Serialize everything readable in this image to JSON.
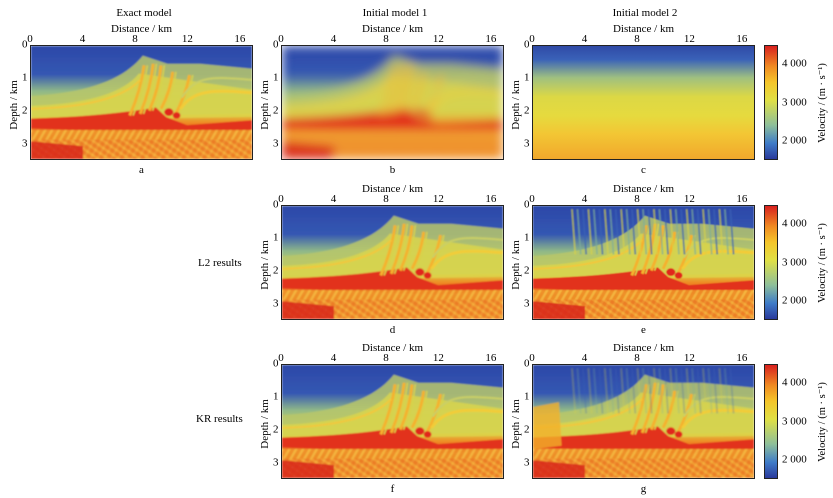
{
  "chart_data": {
    "type": "heatmap",
    "description_units": {
      "x": "km",
      "y": "km",
      "color": "m/s"
    },
    "xlim": [
      0,
      17
    ],
    "ylim": [
      0,
      3.5
    ],
    "x_ticks": [
      "0",
      "4",
      "8",
      "12",
      "16"
    ],
    "y_ticks": [
      "1",
      "2",
      "3"
    ],
    "xlabel": "Distance / km",
    "ylabel": "Depth / km",
    "colorbar": {
      "label": "Velocity / (m · s⁻¹)",
      "ticks": [
        "4 000",
        "3 000",
        "2 000"
      ],
      "range": [
        1500,
        4500
      ]
    },
    "column_titles": [
      "Exact model",
      "Initial model 1",
      "Initial model 2"
    ],
    "row_labels": [
      "L2 results",
      "KR results"
    ],
    "panels": [
      {
        "id": "a",
        "caption": "a",
        "model": "exact"
      },
      {
        "id": "b",
        "caption": "b",
        "model": "smooth"
      },
      {
        "id": "c",
        "caption": "c",
        "model": "layered"
      },
      {
        "id": "d",
        "caption": "d",
        "model": "L2 from initial model 1"
      },
      {
        "id": "e",
        "caption": "e",
        "model": "L2 from initial model 2"
      },
      {
        "id": "f",
        "caption": "f",
        "model": "KR from initial model 1"
      },
      {
        "id": "g",
        "caption": "g",
        "model": "KR from initial model 2"
      }
    ]
  }
}
